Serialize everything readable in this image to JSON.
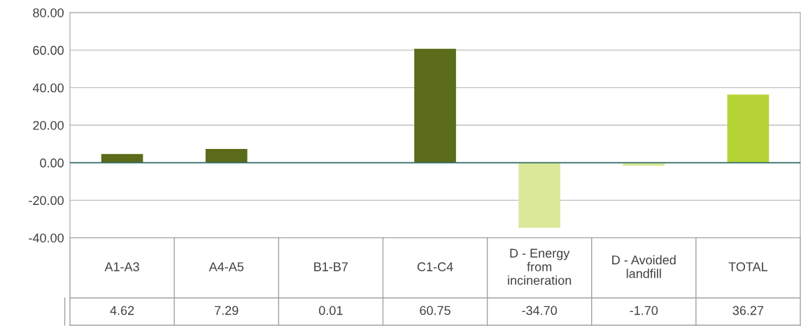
{
  "chart_data": {
    "type": "bar",
    "categories": [
      "A1-A3",
      "A4-A5",
      "B1-B7",
      "C1-C4",
      "D - Energy\nfrom\nincineration",
      "D - Avoided\nlandfill",
      "TOTAL"
    ],
    "values": [
      4.62,
      7.29,
      0.01,
      60.75,
      -34.7,
      -1.7,
      36.27
    ],
    "colors": [
      "#5a6b19",
      "#5a6b19",
      "#5a6b19",
      "#5a6b19",
      "#dbe799",
      "#dbe799",
      "#b5d334"
    ],
    "value_labels": [
      "4.62",
      "7.29",
      "0.01",
      "60.75",
      "-34.70",
      "-1.70",
      "36.27"
    ],
    "ylim": [
      -40,
      80
    ],
    "yticks": [
      {
        "value": -40,
        "label": "-40.00"
      },
      {
        "value": -20,
        "label": "-20.00"
      },
      {
        "value": 0,
        "label": "0.00"
      },
      {
        "value": 20,
        "label": "20.00"
      },
      {
        "value": 40,
        "label": "40.00"
      },
      {
        "value": 60,
        "label": "60.00"
      },
      {
        "value": 80,
        "label": "80.00"
      }
    ],
    "ref_lines": [
      {
        "axis": "y",
        "value": 0,
        "color": "#2e6e6a"
      }
    ],
    "grid": "y",
    "legend": false
  }
}
